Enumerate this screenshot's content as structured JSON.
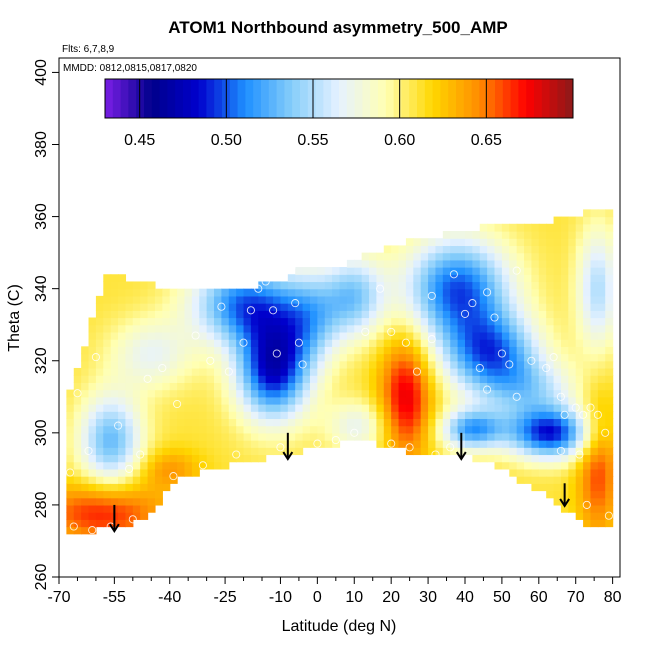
{
  "chart_data": {
    "type": "heatmap",
    "title": "ATOM1 Northbound asymmetry_500_AMP",
    "subtitle_flights": "Flts: 6,7,8,9",
    "subtitle_dates": "MMDD: 0812,0815,0817,0820",
    "xlabel": "Latitude (deg N)",
    "ylabel": "Theta (C)",
    "xlim": [
      -70,
      82
    ],
    "ylim": [
      260,
      404
    ],
    "x_ticks": [
      -70,
      -55,
      -40,
      -25,
      -10,
      0,
      10,
      20,
      30,
      40,
      50,
      60,
      70,
      80
    ],
    "x_tick_labels": [
      "-70",
      "-55",
      "-40",
      "-25",
      "-10",
      "0",
      "10",
      "20",
      "30",
      "40",
      "50",
      "60",
      "70",
      "80"
    ],
    "x_minor_ticks": [
      -65,
      -60,
      -50,
      -45,
      -35,
      -30,
      -20,
      -15,
      -5,
      5,
      15,
      25,
      35,
      45,
      55,
      65,
      75
    ],
    "y_ticks": [
      260,
      280,
      300,
      320,
      340,
      360,
      380,
      400
    ],
    "y_tick_labels": [
      "260",
      "280",
      "300",
      "320",
      "340",
      "360",
      "380",
      "400"
    ],
    "colorbar": {
      "range": [
        0.43,
        0.7
      ],
      "ticks": [
        0.45,
        0.5,
        0.55,
        0.6,
        0.65
      ],
      "tick_labels": [
        "0.45",
        "0.50",
        "0.55",
        "0.60",
        "0.65"
      ],
      "colors": [
        "#7a1fe6",
        "#00008b",
        "#0000cd",
        "#1e90ff",
        "#87cefa",
        "#e6f2ff",
        "#ffffb3",
        "#ffd700",
        "#ff8c00",
        "#ff0000",
        "#8b1a1a"
      ]
    },
    "domain_top": [
      [
        -68,
        308
      ],
      [
        -61,
        331
      ],
      [
        -57,
        344
      ],
      [
        -40,
        340
      ],
      [
        -22,
        340
      ],
      [
        -10,
        342
      ],
      [
        -5,
        346
      ],
      [
        0,
        346
      ],
      [
        5,
        346
      ],
      [
        15,
        350
      ],
      [
        25,
        353
      ],
      [
        35,
        355
      ],
      [
        45,
        357
      ],
      [
        55,
        358
      ],
      [
        65,
        359
      ],
      [
        75,
        362
      ],
      [
        80,
        363
      ]
    ],
    "domain_bottom": [
      [
        80,
        274
      ],
      [
        74,
        274
      ],
      [
        67,
        279
      ],
      [
        60,
        284
      ],
      [
        48,
        291
      ],
      [
        40,
        294
      ],
      [
        32,
        295
      ],
      [
        24,
        295
      ],
      [
        11,
        298
      ],
      [
        0,
        296
      ],
      [
        -10,
        294
      ],
      [
        -20,
        292
      ],
      [
        -30,
        290
      ],
      [
        -38,
        287
      ],
      [
        -45,
        278
      ],
      [
        -52,
        274
      ],
      [
        -60,
        273
      ],
      [
        -68,
        273
      ]
    ],
    "field_base": 0.61,
    "field_features": [
      {
        "x": -12,
        "y": 318,
        "sx": 7,
        "sy": 10,
        "amp": -0.13
      },
      {
        "x": -20,
        "y": 336,
        "sx": 10,
        "sy": 8,
        "amp": -0.1
      },
      {
        "x": -2,
        "y": 332,
        "sx": 6,
        "sy": 9,
        "amp": -0.06
      },
      {
        "x": 10,
        "y": 338,
        "sx": 6,
        "sy": 8,
        "amp": -0.07
      },
      {
        "x": 38,
        "y": 340,
        "sx": 10,
        "sy": 10,
        "amp": -0.11
      },
      {
        "x": 47,
        "y": 322,
        "sx": 9,
        "sy": 8,
        "amp": -0.1
      },
      {
        "x": 58,
        "y": 312,
        "sx": 9,
        "sy": 6,
        "amp": -0.05
      },
      {
        "x": 63,
        "y": 300,
        "sx": 8,
        "sy": 5,
        "amp": -0.12
      },
      {
        "x": 42,
        "y": 301,
        "sx": 6,
        "sy": 4,
        "amp": -0.09
      },
      {
        "x": -56,
        "y": 298,
        "sx": 6,
        "sy": 9,
        "amp": -0.08
      },
      {
        "x": 24,
        "y": 310,
        "sx": 5,
        "sy": 12,
        "amp": 0.07
      },
      {
        "x": 11,
        "y": 302,
        "sx": 6,
        "sy": 5,
        "amp": -0.04
      },
      {
        "x": -58,
        "y": 278,
        "sx": 12,
        "sy": 6,
        "amp": 0.06
      },
      {
        "x": -40,
        "y": 290,
        "sx": 6,
        "sy": 4,
        "amp": 0.03
      },
      {
        "x": 76,
        "y": 290,
        "sx": 4,
        "sy": 14,
        "amp": 0.05
      },
      {
        "x": 76,
        "y": 340,
        "sx": 4,
        "sy": 12,
        "amp": -0.06
      },
      {
        "x": -45,
        "y": 322,
        "sx": 8,
        "sy": 7,
        "amp": -0.04
      }
    ],
    "observations": [
      {
        "lat": -66,
        "theta": 274
      },
      {
        "lat": -61,
        "theta": 273
      },
      {
        "lat": -56,
        "theta": 274
      },
      {
        "lat": -50,
        "theta": 276
      },
      {
        "lat": -67,
        "theta": 289
      },
      {
        "lat": -62,
        "theta": 295
      },
      {
        "lat": -54,
        "theta": 302
      },
      {
        "lat": -51,
        "theta": 290
      },
      {
        "lat": -48,
        "theta": 294
      },
      {
        "lat": -39,
        "theta": 288
      },
      {
        "lat": -31,
        "theta": 291
      },
      {
        "lat": -22,
        "theta": 294
      },
      {
        "lat": -65,
        "theta": 311
      },
      {
        "lat": -60,
        "theta": 321
      },
      {
        "lat": -46,
        "theta": 315
      },
      {
        "lat": -42,
        "theta": 318
      },
      {
        "lat": -38,
        "theta": 308
      },
      {
        "lat": -33,
        "theta": 327
      },
      {
        "lat": -29,
        "theta": 320
      },
      {
        "lat": -26,
        "theta": 335
      },
      {
        "lat": -24,
        "theta": 317
      },
      {
        "lat": -20,
        "theta": 325
      },
      {
        "lat": -18,
        "theta": 334
      },
      {
        "lat": -16,
        "theta": 340
      },
      {
        "lat": -14,
        "theta": 342
      },
      {
        "lat": -12,
        "theta": 334
      },
      {
        "lat": -11,
        "theta": 322
      },
      {
        "lat": -7,
        "theta": 346
      },
      {
        "lat": -6,
        "theta": 336
      },
      {
        "lat": -5,
        "theta": 325
      },
      {
        "lat": -4,
        "theta": 319
      },
      {
        "lat": -10,
        "theta": 296
      },
      {
        "lat": 0,
        "theta": 297
      },
      {
        "lat": 5,
        "theta": 298
      },
      {
        "lat": 10,
        "theta": 300
      },
      {
        "lat": 13,
        "theta": 328
      },
      {
        "lat": 17,
        "theta": 340
      },
      {
        "lat": 20,
        "theta": 328
      },
      {
        "lat": 24,
        "theta": 325
      },
      {
        "lat": 27,
        "theta": 317
      },
      {
        "lat": 20,
        "theta": 297
      },
      {
        "lat": 25,
        "theta": 296
      },
      {
        "lat": 32,
        "theta": 294
      },
      {
        "lat": 36,
        "theta": 296
      },
      {
        "lat": 37,
        "theta": 344
      },
      {
        "lat": 40,
        "theta": 333
      },
      {
        "lat": 42,
        "theta": 336
      },
      {
        "lat": 46,
        "theta": 339
      },
      {
        "lat": 48,
        "theta": 332
      },
      {
        "lat": 50,
        "theta": 322
      },
      {
        "lat": 52,
        "theta": 319
      },
      {
        "lat": 54,
        "theta": 345
      },
      {
        "lat": 58,
        "theta": 320
      },
      {
        "lat": 62,
        "theta": 318
      },
      {
        "lat": 64,
        "theta": 321
      },
      {
        "lat": 66,
        "theta": 310
      },
      {
        "lat": 67,
        "theta": 305
      },
      {
        "lat": 70,
        "theta": 307
      },
      {
        "lat": 72,
        "theta": 305
      },
      {
        "lat": 74,
        "theta": 307
      },
      {
        "lat": 76,
        "theta": 305
      },
      {
        "lat": 78,
        "theta": 300
      },
      {
        "lat": 71,
        "theta": 294
      },
      {
        "lat": 66,
        "theta": 295
      },
      {
        "lat": 73,
        "theta": 280
      },
      {
        "lat": 79,
        "theta": 277
      },
      {
        "lat": 46,
        "theta": 312
      },
      {
        "lat": 44,
        "theta": 318
      },
      {
        "lat": 54,
        "theta": 310
      },
      {
        "lat": 31,
        "theta": 326
      },
      {
        "lat": 31,
        "theta": 338
      }
    ],
    "arrows": [
      {
        "lat": -55,
        "theta_from": 280,
        "theta_to": 273
      },
      {
        "lat": -8,
        "theta_from": 300,
        "theta_to": 293
      },
      {
        "lat": 39,
        "theta_from": 300,
        "theta_to": 293
      },
      {
        "lat": 67,
        "theta_from": 286,
        "theta_to": 280
      }
    ]
  }
}
